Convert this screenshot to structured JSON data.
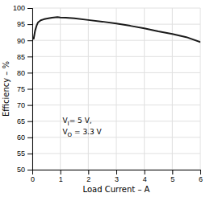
{
  "chart_data": {
    "type": "line",
    "x": [
      0.05,
      0.1,
      0.15,
      0.2,
      0.3,
      0.4,
      0.5,
      0.7,
      0.9,
      1.0,
      1.2,
      1.5,
      2.0,
      2.5,
      3.0,
      3.5,
      4.0,
      4.5,
      5.0,
      5.5,
      6.0
    ],
    "values": [
      90.5,
      93.0,
      94.5,
      95.5,
      96.2,
      96.5,
      96.7,
      97.0,
      97.2,
      97.1,
      97.0,
      96.8,
      96.3,
      95.8,
      95.2,
      94.5,
      93.7,
      92.8,
      92.0,
      91.0,
      89.5
    ],
    "color": "#1a1a1a",
    "x_label": "Load Current – A",
    "y_label": "Efficiency – %",
    "xlim": [
      0,
      6
    ],
    "ylim": [
      50,
      100
    ],
    "xticks": [
      0,
      1,
      2,
      3,
      4,
      5,
      6
    ],
    "yticks": [
      50,
      55,
      60,
      65,
      70,
      75,
      80,
      85,
      90,
      95,
      100
    ],
    "grid": true,
    "annotations": [
      "VI= 5 V,",
      "VO = 3.3 V"
    ]
  }
}
